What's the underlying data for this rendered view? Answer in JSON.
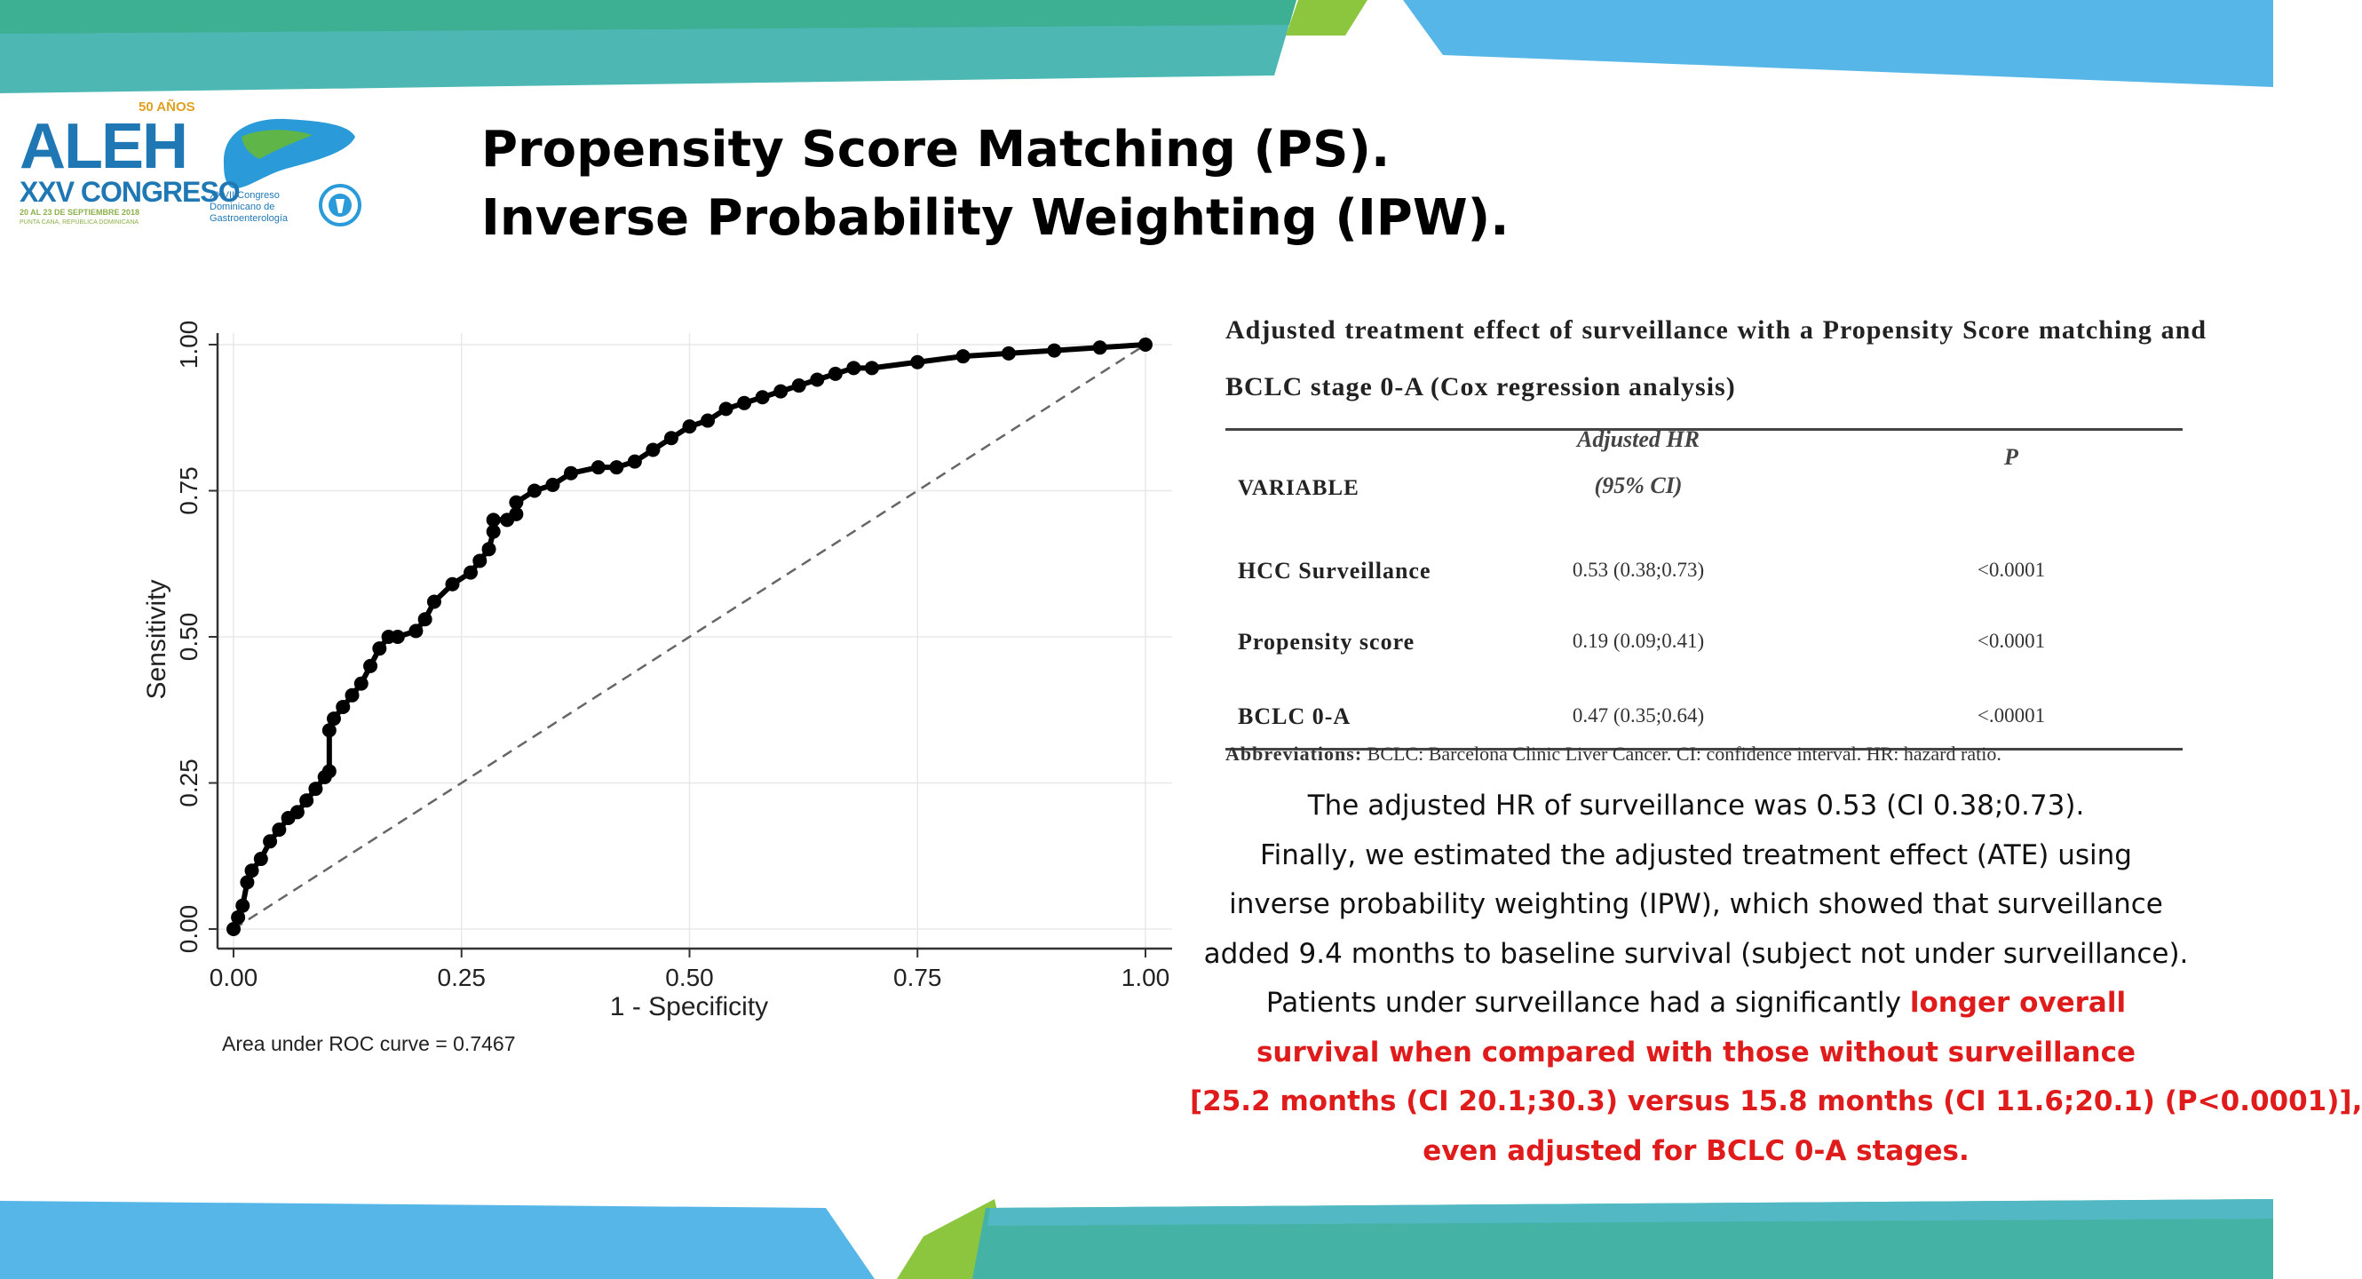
{
  "slide": {
    "title_line1": "Propensity Score Matching (PS).",
    "title_line2": "Inverse Probability Weighting (IPW).",
    "logo": {
      "brand": "ALEH",
      "anniversary": "50 AÑOS",
      "congress": "XXV CONGRESO",
      "dates": "20 AL 23 DE SEPTIEMBRE 2018",
      "place": "PUNTA CANA, REPÚBLICA DOMINICANA",
      "partner_line1": "XXVII Congreso",
      "partner_line2": "Dominicano de",
      "partner_line3": "Gastroenterología"
    }
  },
  "chart_data": {
    "type": "line",
    "xlabel": "1 - Specificity",
    "ylabel": "Sensitivity",
    "xlim": [
      0,
      1
    ],
    "ylim": [
      0,
      1
    ],
    "xticks": [
      "0.00",
      "0.25",
      "0.50",
      "0.75",
      "1.00"
    ],
    "yticks": [
      "0.00",
      "0.25",
      "0.50",
      "0.75",
      "1.00"
    ],
    "grid": true,
    "note": "Area under ROC curve = 0.7467",
    "series": [
      {
        "kind": "roc",
        "x": [
          0.0,
          0.005,
          0.01,
          0.015,
          0.02,
          0.03,
          0.04,
          0.05,
          0.06,
          0.07,
          0.08,
          0.09,
          0.1,
          0.105,
          0.105,
          0.11,
          0.12,
          0.13,
          0.14,
          0.15,
          0.16,
          0.17,
          0.18,
          0.2,
          0.21,
          0.22,
          0.24,
          0.26,
          0.27,
          0.28,
          0.285,
          0.285,
          0.3,
          0.31,
          0.31,
          0.33,
          0.35,
          0.37,
          0.4,
          0.42,
          0.44,
          0.46,
          0.48,
          0.5,
          0.52,
          0.54,
          0.56,
          0.58,
          0.6,
          0.62,
          0.64,
          0.66,
          0.68,
          0.7,
          0.75,
          0.8,
          0.85,
          0.9,
          0.95,
          1.0
        ],
        "y": [
          0.0,
          0.02,
          0.04,
          0.08,
          0.1,
          0.12,
          0.15,
          0.17,
          0.19,
          0.2,
          0.22,
          0.24,
          0.26,
          0.27,
          0.34,
          0.36,
          0.38,
          0.4,
          0.42,
          0.45,
          0.48,
          0.5,
          0.5,
          0.51,
          0.53,
          0.56,
          0.59,
          0.61,
          0.63,
          0.65,
          0.68,
          0.7,
          0.7,
          0.71,
          0.73,
          0.75,
          0.76,
          0.78,
          0.79,
          0.79,
          0.8,
          0.82,
          0.84,
          0.86,
          0.87,
          0.89,
          0.9,
          0.91,
          0.92,
          0.93,
          0.94,
          0.95,
          0.96,
          0.96,
          0.97,
          0.98,
          0.985,
          0.99,
          0.995,
          1.0
        ]
      },
      {
        "kind": "reference",
        "x": [
          0,
          1
        ],
        "y": [
          0,
          1
        ]
      }
    ]
  },
  "table": {
    "caption": "Adjusted treatment effect of surveillance with a Propensity Score matching and BCLC stage 0-A (Cox regression analysis)",
    "header_var": "VARIABLE",
    "header_hr_line1": "Adjusted HR",
    "header_hr_line2": "(95% CI)",
    "header_p": "P",
    "rows": [
      {
        "variable": "HCC Surveillance",
        "hr": "0.53 (0.38;0.73)",
        "p": "<0.0001"
      },
      {
        "variable": "Propensity score",
        "hr": "0.19 (0.09;0.41)",
        "p": "<0.0001"
      },
      {
        "variable": "BCLC 0-A",
        "hr": "0.47 (0.35;0.64)",
        "p": "<.00001"
      }
    ],
    "abbr_label": "Abbreviations:",
    "abbr_text": "BCLC: Barcelona Clinic Liver Cancer. CI: confidence interval. HR: hazard ratio."
  },
  "summary": {
    "line1": "The adjusted HR of surveillance was 0.53 (CI 0.38;0.73).",
    "line2": "Finally, we estimated the adjusted treatment effect (ATE) using",
    "line3": "inverse probability weighting (IPW), which showed that surveillance",
    "line4": "added 9.4 months to baseline survival (subject not under surveillance).",
    "line5_plain": "Patients under surveillance had a significantly ",
    "line5_red": "longer overall",
    "line6_red": "survival when compared with those without surveillance",
    "line7_red": "[25.2 months (CI 20.1;30.3) versus 15.8 months (CI 11.6;20.1) (P<0.0001)],",
    "line8_red": "even adjusted for BCLC 0-A stages."
  },
  "colors": {
    "teal": "#4db3b3",
    "teal_dark": "#3aa59c",
    "blue": "#56b6e8",
    "green": "#8cc63f",
    "highlight_red": "#e01b1b"
  }
}
